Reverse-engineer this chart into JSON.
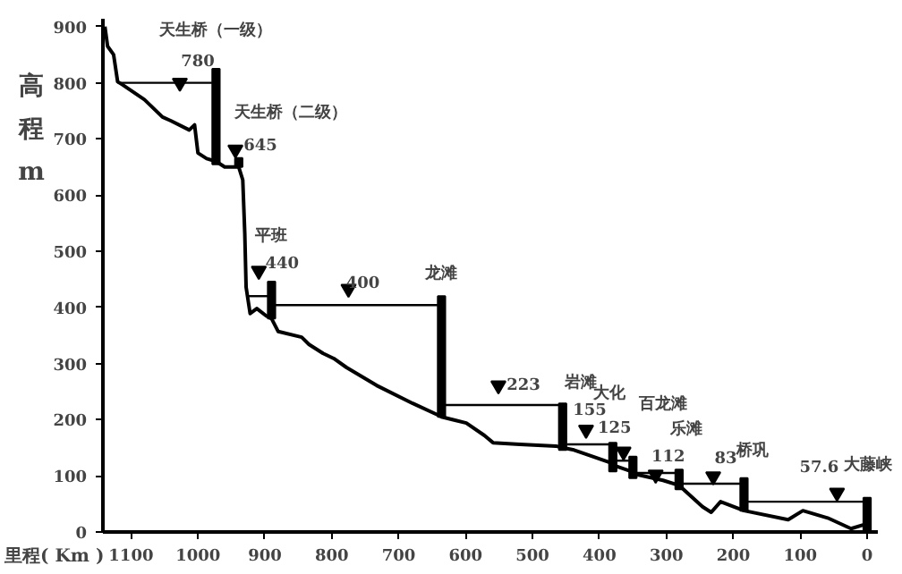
{
  "chart_data": {
    "type": "line",
    "xlabel": "里程( Km )",
    "ylabel": "高程m",
    "xlim": [
      1142,
      -16
    ],
    "ylim": [
      0,
      914
    ],
    "xticks": [
      1100,
      1000,
      900,
      800,
      700,
      600,
      500,
      400,
      300,
      200,
      100,
      0
    ],
    "yticks": [
      0,
      100,
      200,
      300,
      400,
      500,
      600,
      700,
      800,
      900
    ],
    "grid": false,
    "series": [
      {
        "color": "#000000",
        "x": [
          1139,
          1135,
          1126,
          1120,
          1112,
          1080,
          1053,
          1040,
          1013,
          1005,
          1000,
          987,
          973,
          960,
          941,
          939,
          933,
          930,
          928,
          922,
          912,
          898,
          890,
          880,
          845,
          834,
          813,
          797,
          778,
          733,
          679,
          639,
          636,
          599,
          572,
          559,
          519,
          465,
          455,
          438,
          385,
          377,
          353,
          350,
          305,
          281,
          246,
          233,
          219,
          184,
          118,
          96,
          59,
          24,
          5,
          0
        ],
        "values": [
          900,
          865,
          850,
          802,
          796,
          770,
          739,
          732,
          716,
          725,
          675,
          665,
          660,
          650,
          650,
          650,
          627,
          532,
          436,
          389,
          398,
          385,
          380,
          357,
          347,
          334,
          318,
          309,
          293,
          261,
          229,
          207,
          205,
          194,
          172,
          159,
          156,
          153,
          150,
          146,
          124,
          118,
          108,
          104,
          92,
          83,
          45,
          35,
          54,
          38,
          22,
          38,
          25,
          6,
          13,
          10
        ]
      },
      {
        "color": "#000000",
        "x": [
          1120,
          979
        ],
        "values": [
          800,
          800
        ]
      },
      {
        "color": "#000000",
        "x": [
          928,
          896
        ],
        "values": [
          420,
          420
        ]
      },
      {
        "color": "#000000",
        "x": [
          884,
          642
        ],
        "values": [
          404,
          404
        ]
      },
      {
        "color": "#000000",
        "x": [
          630,
          461
        ],
        "values": [
          226,
          226
        ]
      },
      {
        "color": "#000000",
        "x": [
          449,
          386
        ],
        "values": [
          156,
          156
        ]
      },
      {
        "color": "#000000",
        "x": [
          374,
          356
        ],
        "values": [
          127,
          127
        ]
      },
      {
        "color": "#000000",
        "x": [
          344,
          287
        ],
        "values": [
          105,
          105
        ]
      },
      {
        "color": "#000000",
        "x": [
          275,
          190
        ],
        "values": [
          86,
          86
        ]
      },
      {
        "color": "#000000",
        "x": [
          178,
          6
        ],
        "values": [
          54,
          54
        ]
      },
      {
        "type": "bar",
        "color": "#000000",
        "x": [
          973,
          939,
          890,
          636,
          455,
          380,
          350,
          281,
          184,
          0
        ],
        "base": [
          655,
          650,
          380,
          205,
          146,
          108,
          96,
          76,
          38,
          0
        ],
        "values": [
          170,
          16,
          66,
          215,
          83,
          51,
          38,
          35,
          58,
          61
        ]
      },
      {
        "type": "scatter",
        "marker": "triangle",
        "color": "#000000",
        "x": [
          1027,
          944,
          909,
          775,
          551,
          420,
          364,
          316,
          230,
          45
        ],
        "values": [
          800,
          681,
          465,
          433,
          261,
          182,
          143,
          102,
          99,
          70
        ]
      }
    ],
    "annotations": [
      {
        "text": "天生桥（一级）",
        "x": 973,
        "y": 825
      },
      {
        "text": "780",
        "x": 1027,
        "y": 800
      },
      {
        "text": "天生桥（二级）",
        "x": 939,
        "y": 666
      },
      {
        "text": "645",
        "x": 944,
        "y": 681
      },
      {
        "text": "平班",
        "x": 890,
        "y": 446
      },
      {
        "text": "440",
        "x": 909,
        "y": 465
      },
      {
        "text": "400",
        "x": 775,
        "y": 433
      },
      {
        "text": "龙滩",
        "x": 636,
        "y": 420
      },
      {
        "text": "223",
        "x": 551,
        "y": 261
      },
      {
        "text": "岩滩",
        "x": 455,
        "y": 229
      },
      {
        "text": "155",
        "x": 420,
        "y": 182
      },
      {
        "text": "大化",
        "x": 380,
        "y": 159
      },
      {
        "text": "百龙滩",
        "x": 350,
        "y": 134
      },
      {
        "text": "125",
        "x": 364,
        "y": 143
      },
      {
        "text": "乐滩",
        "x": 281,
        "y": 111
      },
      {
        "text": "112",
        "x": 316,
        "y": 102
      },
      {
        "text": "83",
        "x": 230,
        "y": 99
      },
      {
        "text": "桥巩",
        "x": 184,
        "y": 96
      },
      {
        "text": "57.6",
        "x": 45,
        "y": 70
      },
      {
        "text": "大藤峡",
        "x": 0,
        "y": 61
      }
    ]
  }
}
